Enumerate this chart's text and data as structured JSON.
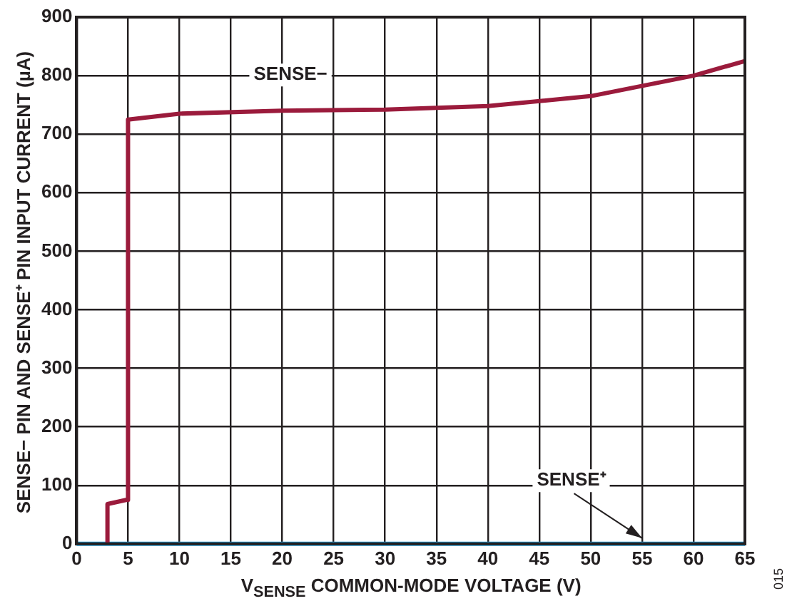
{
  "chart_data": {
    "type": "line",
    "xlabel": "V$_{SENSE}$ COMMON-MODE VOLTAGE (V)",
    "ylabel": "SENSE− PIN AND SENSE⁺ PIN INPUT CURRENT (µA)",
    "xlim": [
      0,
      65
    ],
    "xticks": [
      0,
      5,
      10,
      15,
      20,
      25,
      30,
      35,
      40,
      45,
      50,
      55,
      60,
      65
    ],
    "ylim": [
      0,
      900
    ],
    "yticks": [
      0,
      100,
      200,
      300,
      400,
      500,
      600,
      700,
      800,
      900
    ],
    "grid": true,
    "legend": false,
    "marker": "none",
    "line_style": "solid",
    "series": [
      {
        "color": "#9b1b3c",
        "x": [
          3,
          3,
          4.8,
          5,
          5,
          10,
          20,
          30,
          40,
          50,
          60,
          65
        ],
        "values": [
          0,
          68,
          75,
          75,
          725,
          735,
          740,
          742,
          748,
          765,
          800,
          825
        ]
      },
      {
        "color": "#1f9ad6",
        "x": [
          0,
          65
        ],
        "values": [
          0,
          0
        ]
      }
    ],
    "annotations": [
      "SENSE−",
      {
        "text": "SENSE⁺",
        "x": 55,
        "y": 0
      },
      "015"
    ]
  }
}
